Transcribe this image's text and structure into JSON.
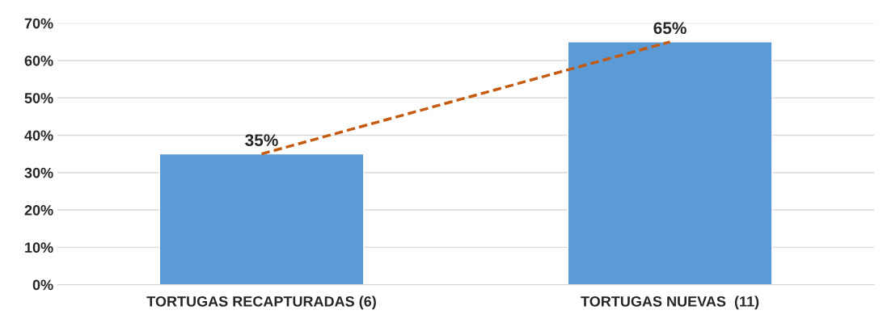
{
  "chart_data": {
    "type": "bar",
    "categories": [
      "TORTUGAS RECAPTURADAS (6)",
      "TORTUGAS NUEVAS  (11)"
    ],
    "series": [
      {
        "color": "#5b9bd5",
        "values": [
          35,
          65
        ],
        "value_labels": [
          "35%",
          "65%"
        ]
      },
      {
        "type": "line",
        "color": "#c55a11",
        "values": [
          35,
          65
        ],
        "line_style": "dashed",
        "marker": "none"
      }
    ],
    "ylim": [
      0,
      70
    ],
    "yticks": [
      {
        "value": 0,
        "label": "0%"
      },
      {
        "value": 10,
        "label": "10%"
      },
      {
        "value": 20,
        "label": "20%"
      },
      {
        "value": 30,
        "label": "30%"
      },
      {
        "value": 40,
        "label": "40%"
      },
      {
        "value": 50,
        "label": "50%"
      },
      {
        "value": 60,
        "label": "60%"
      },
      {
        "value": 70,
        "label": "70%"
      }
    ],
    "grid": "y",
    "legend": false
  }
}
